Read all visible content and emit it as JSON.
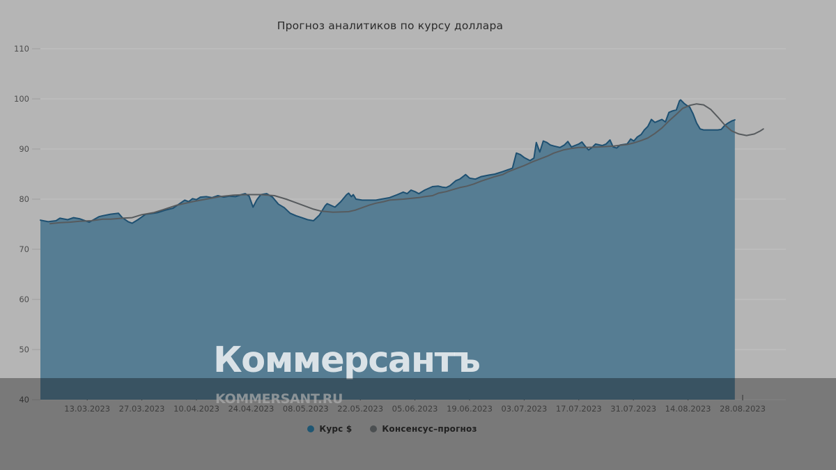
{
  "title": "Прогноз аналитиков по курсу доллара",
  "watermark": {
    "logo": "Коммерсантъ",
    "url": "KOMMERSANT.RU"
  },
  "colors": {
    "background": "#b5b5b5",
    "gridline": "#c2c2c2",
    "y_tick_dash": "#9e9e9e",
    "x_tick": "#4a4a4a",
    "axis_text_y": "#4d4d4d",
    "axis_text_x": "#5c5c5c",
    "title_text": "#2b2b2b",
    "area_fill": "#567d93",
    "rate_line": "#1e5071",
    "consensus_line": "#575b5e",
    "legend_dot_rate": "#2f80ab",
    "legend_dot_consensus": "#70767a",
    "footer_band": "rgba(0,0,0,0.33)"
  },
  "legend": {
    "items": [
      {
        "label": "Курс $",
        "color": "#2f80ab"
      },
      {
        "label": "Консенсус–прогноз",
        "color": "#70767a"
      }
    ]
  },
  "chart_data": {
    "type": "area",
    "title": "Прогноз аналитиков по курсу доллара",
    "xlabel": "",
    "ylabel": "",
    "ylim": [
      40,
      110
    ],
    "y_ticks": [
      110,
      100,
      90,
      80,
      70,
      60,
      50,
      40
    ],
    "grid": "horizontal",
    "legend_position": "bottom-center",
    "x_unit": "days since 01.03.2023",
    "x_ticks": [
      {
        "label": "13.03.2023",
        "day": 12
      },
      {
        "label": "27.03.2023",
        "day": 26
      },
      {
        "label": "10.04.2023",
        "day": 40
      },
      {
        "label": "24.04.2023",
        "day": 54
      },
      {
        "label": "08.05.2023",
        "day": 68
      },
      {
        "label": "22.05.2023",
        "day": 82
      },
      {
        "label": "05.06.2023",
        "day": 96
      },
      {
        "label": "19.06.2023",
        "day": 110
      },
      {
        "label": "03.07.2023",
        "day": 124
      },
      {
        "label": "17.07.2023",
        "day": 138
      },
      {
        "label": "31.07.2023",
        "day": 152
      },
      {
        "label": "14.08.2023",
        "day": 166
      },
      {
        "label": "28.08.2023",
        "day": 180
      }
    ],
    "series": [
      {
        "name": "Курс $",
        "style": "area",
        "points": [
          [
            0,
            75.8
          ],
          [
            2,
            75.5
          ],
          [
            4,
            75.7
          ],
          [
            5,
            76.2
          ],
          [
            7,
            75.9
          ],
          [
            8.5,
            76.3
          ],
          [
            10,
            76.1
          ],
          [
            12.5,
            75.4
          ],
          [
            15,
            76.5
          ],
          [
            16,
            76.7
          ],
          [
            18,
            77
          ],
          [
            20,
            77.2
          ],
          [
            21,
            76.3
          ],
          [
            22.5,
            75.5
          ],
          [
            23.5,
            75.2
          ],
          [
            25,
            75.9
          ],
          [
            27,
            77
          ],
          [
            29,
            77.2
          ],
          [
            30,
            77.3
          ],
          [
            32,
            77.8
          ],
          [
            34,
            78.2
          ],
          [
            35.5,
            79
          ],
          [
            37,
            79.8
          ],
          [
            38,
            79.5
          ],
          [
            39,
            80.1
          ],
          [
            40,
            79.9
          ],
          [
            41,
            80.4
          ],
          [
            42.5,
            80.5
          ],
          [
            44,
            80.3
          ],
          [
            45.5,
            80.7
          ],
          [
            47,
            80.4
          ],
          [
            48.5,
            80.6
          ],
          [
            50,
            80.5
          ],
          [
            51.5,
            80.9
          ],
          [
            52.5,
            81.1
          ],
          [
            53.5,
            80.6
          ],
          [
            54.5,
            78.4
          ],
          [
            55.5,
            79.9
          ],
          [
            56.5,
            80.9
          ],
          [
            58,
            81.1
          ],
          [
            59.5,
            80.4
          ],
          [
            61,
            79
          ],
          [
            62.5,
            78.3
          ],
          [
            64,
            77.2
          ],
          [
            65.5,
            76.7
          ],
          [
            67,
            76.3
          ],
          [
            68.5,
            75.9
          ],
          [
            70,
            75.7
          ],
          [
            71.5,
            76.8
          ],
          [
            73,
            78.7
          ],
          [
            73.5,
            79.1
          ],
          [
            75.5,
            78.4
          ],
          [
            77,
            79.5
          ],
          [
            78.5,
            80.9
          ],
          [
            79,
            81.2
          ],
          [
            79.7,
            80.5
          ],
          [
            80.2,
            80.9
          ],
          [
            80.9,
            80
          ],
          [
            82.5,
            79.8
          ],
          [
            86,
            79.8
          ],
          [
            89.5,
            80.3
          ],
          [
            91.5,
            80.9
          ],
          [
            93,
            81.4
          ],
          [
            94,
            81.1
          ],
          [
            95,
            81.8
          ],
          [
            96,
            81.5
          ],
          [
            97,
            81.1
          ],
          [
            98.5,
            81.8
          ],
          [
            100.5,
            82.5
          ],
          [
            102,
            82.6
          ],
          [
            103,
            82.4
          ],
          [
            104,
            82.3
          ],
          [
            105,
            82.7
          ],
          [
            106.5,
            83.7
          ],
          [
            107.5,
            84
          ],
          [
            109,
            84.9
          ],
          [
            110,
            84.2
          ],
          [
            111.5,
            84
          ],
          [
            113,
            84.5
          ],
          [
            115,
            84.8
          ],
          [
            116.5,
            85
          ],
          [
            118.5,
            85.5
          ],
          [
            120,
            85.9
          ],
          [
            121,
            86.2
          ],
          [
            122,
            89.2
          ],
          [
            123,
            88.9
          ],
          [
            124,
            88.3
          ],
          [
            125.5,
            87.7
          ],
          [
            126.5,
            88.2
          ],
          [
            127.1,
            91.3
          ],
          [
            128,
            89.4
          ],
          [
            128.9,
            91.6
          ],
          [
            129.8,
            91.3
          ],
          [
            130.7,
            90.8
          ],
          [
            131.6,
            90.6
          ],
          [
            133.2,
            90.3
          ],
          [
            134.3,
            90.8
          ],
          [
            135.2,
            91.5
          ],
          [
            136.1,
            90.4
          ],
          [
            137,
            90.7
          ],
          [
            138,
            91
          ],
          [
            138.8,
            91.4
          ],
          [
            139.6,
            90.6
          ],
          [
            140.5,
            89.8
          ],
          [
            141.4,
            90.3
          ],
          [
            142.3,
            91
          ],
          [
            144,
            90.7
          ],
          [
            145,
            91
          ],
          [
            146,
            91.8
          ],
          [
            146.8,
            90.4
          ],
          [
            147.7,
            90.2
          ],
          [
            148.6,
            90.8
          ],
          [
            150.4,
            91
          ],
          [
            151.3,
            92
          ],
          [
            152.1,
            91.6
          ],
          [
            153,
            92.4
          ],
          [
            154,
            92.9
          ],
          [
            154.8,
            93.8
          ],
          [
            155.7,
            94.5
          ],
          [
            156.6,
            95.9
          ],
          [
            157.5,
            95.3
          ],
          [
            158.4,
            95.6
          ],
          [
            159.3,
            95.9
          ],
          [
            160.2,
            95.4
          ],
          [
            161.1,
            97.3
          ],
          [
            162,
            97.6
          ],
          [
            163,
            97.8
          ],
          [
            163.8,
            99.6
          ],
          [
            164.1,
            99.8
          ],
          [
            165,
            99.1
          ],
          [
            165.7,
            98.7
          ],
          [
            166.4,
            98.4
          ],
          [
            167.3,
            97
          ],
          [
            168.2,
            95.2
          ],
          [
            169.1,
            94
          ],
          [
            170,
            93.8
          ],
          [
            171.8,
            93.8
          ],
          [
            173.6,
            93.8
          ],
          [
            174.5,
            93.9
          ],
          [
            175.4,
            94.7
          ],
          [
            176.3,
            95.2
          ],
          [
            177.2,
            95.6
          ],
          [
            178,
            95.8
          ]
        ]
      },
      {
        "name": "Консенсус–прогноз",
        "style": "line",
        "points": [
          [
            2.5,
            75.1
          ],
          [
            5,
            75.3
          ],
          [
            7.5,
            75.4
          ],
          [
            10,
            75.6
          ],
          [
            13,
            75.7
          ],
          [
            16,
            76
          ],
          [
            18,
            76
          ],
          [
            21,
            76.2
          ],
          [
            23.5,
            76.3
          ],
          [
            26,
            76.9
          ],
          [
            29,
            77.3
          ],
          [
            31.5,
            77.9
          ],
          [
            35,
            78.8
          ],
          [
            39,
            79.5
          ],
          [
            42.5,
            80
          ],
          [
            46,
            80.5
          ],
          [
            49.5,
            80.8
          ],
          [
            53,
            80.9
          ],
          [
            56.5,
            80.9
          ],
          [
            60,
            80.7
          ],
          [
            63,
            80
          ],
          [
            66.5,
            79
          ],
          [
            70,
            78
          ],
          [
            72,
            77.6
          ],
          [
            75,
            77.4
          ],
          [
            79,
            77.5
          ],
          [
            80.7,
            77.8
          ],
          [
            82.5,
            78.3
          ],
          [
            84.3,
            78.8
          ],
          [
            86,
            79.2
          ],
          [
            88,
            79.5
          ],
          [
            89.5,
            79.8
          ],
          [
            93,
            80
          ],
          [
            97,
            80.3
          ],
          [
            98.5,
            80.5
          ],
          [
            100.5,
            80.7
          ],
          [
            102,
            81.2
          ],
          [
            104,
            81.5
          ],
          [
            105.7,
            81.9
          ],
          [
            107.5,
            82.3
          ],
          [
            109.3,
            82.6
          ],
          [
            111,
            83
          ],
          [
            113,
            83.6
          ],
          [
            116.5,
            84.5
          ],
          [
            118.5,
            84.9
          ],
          [
            120,
            85.5
          ],
          [
            122,
            86.1
          ],
          [
            124,
            86.7
          ],
          [
            126,
            87.4
          ],
          [
            128,
            88
          ],
          [
            130,
            88.6
          ],
          [
            131.6,
            89.2
          ],
          [
            134,
            89.8
          ],
          [
            136,
            90.1
          ],
          [
            138,
            90.3
          ],
          [
            139.6,
            90.3
          ],
          [
            143,
            90.4
          ],
          [
            147,
            90.6
          ],
          [
            150.4,
            90.9
          ],
          [
            152,
            91.2
          ],
          [
            154,
            91.7
          ],
          [
            155.7,
            92.2
          ],
          [
            157.5,
            93.1
          ],
          [
            159.3,
            94.2
          ],
          [
            161.1,
            95.6
          ],
          [
            163,
            96.9
          ],
          [
            164.6,
            98.1
          ],
          [
            166.4,
            98.7
          ],
          [
            168.2,
            99
          ],
          [
            170,
            98.8
          ],
          [
            171.8,
            97.9
          ],
          [
            173.6,
            96.4
          ],
          [
            175.4,
            94.8
          ],
          [
            177.2,
            93.6
          ],
          [
            179,
            93
          ],
          [
            181,
            92.7
          ],
          [
            183,
            93
          ],
          [
            184.5,
            93.6
          ],
          [
            185.3,
            94
          ]
        ]
      }
    ]
  }
}
